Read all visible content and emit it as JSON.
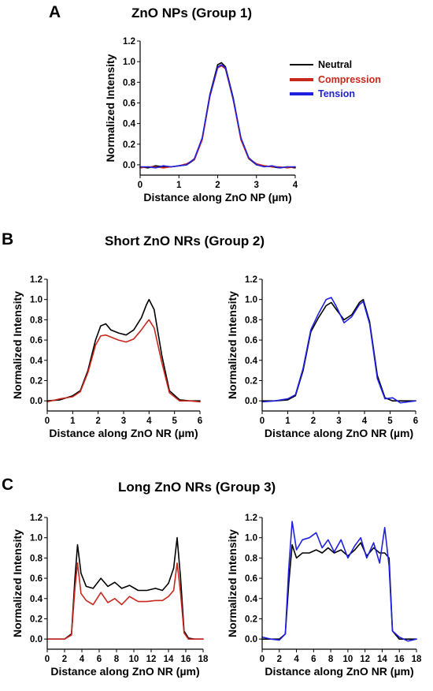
{
  "colors": {
    "neutral": "#000000",
    "compression": "#c8281e",
    "tension": "#2020e0"
  },
  "panels": [
    {
      "letter": "A",
      "title": "ZnO NPs (Group 1)"
    },
    {
      "letter": "B",
      "title": "Short ZnO NRs (Group 2)"
    },
    {
      "letter": "C",
      "title": "Long ZnO NRs (Group 3)"
    }
  ],
  "legend": [
    {
      "label": "Neutral",
      "color_key": "neutral"
    },
    {
      "label": "Compression",
      "color_key": "compression"
    },
    {
      "label": "Tension",
      "color_key": "tension"
    }
  ],
  "chart_data": [
    {
      "id": "A",
      "type": "line",
      "xlabel": "Distance along ZnO NP (µm)",
      "ylabel": "Normalized Intensity",
      "xlim": [
        0,
        4
      ],
      "ylim": [
        -0.1,
        1.2
      ],
      "xticks": [
        0,
        1,
        2,
        3,
        4
      ],
      "yticks": [
        0.0,
        0.2,
        0.4,
        0.6,
        0.8,
        1.0,
        1.2
      ],
      "legend_position": "top-right",
      "series": [
        {
          "name": "Neutral",
          "color_key": "neutral",
          "x": [
            0,
            0.2,
            0.4,
            0.6,
            0.8,
            1.0,
            1.2,
            1.4,
            1.6,
            1.8,
            2.0,
            2.1,
            2.2,
            2.4,
            2.6,
            2.8,
            3.0,
            3.2,
            3.4,
            3.6,
            3.8,
            4.0
          ],
          "y": [
            -0.02,
            -0.03,
            -0.01,
            -0.02,
            -0.02,
            -0.01,
            0.0,
            0.05,
            0.25,
            0.68,
            0.97,
            0.99,
            0.95,
            0.65,
            0.25,
            0.06,
            0.0,
            -0.01,
            -0.02,
            -0.03,
            -0.02,
            -0.03
          ]
        },
        {
          "name": "Compression",
          "color_key": "compression",
          "x": [
            0,
            0.2,
            0.4,
            0.6,
            0.8,
            1.0,
            1.2,
            1.4,
            1.6,
            1.8,
            2.0,
            2.1,
            2.2,
            2.4,
            2.6,
            2.8,
            3.0,
            3.2,
            3.4,
            3.6,
            3.8,
            4.0
          ],
          "y": [
            -0.03,
            -0.02,
            -0.02,
            -0.03,
            -0.02,
            -0.01,
            0.01,
            0.05,
            0.24,
            0.66,
            0.94,
            0.96,
            0.93,
            0.63,
            0.24,
            0.06,
            0.01,
            -0.01,
            -0.02,
            -0.02,
            -0.03,
            -0.02
          ]
        },
        {
          "name": "Tension",
          "color_key": "tension",
          "x": [
            0,
            0.2,
            0.4,
            0.6,
            0.8,
            1.0,
            1.2,
            1.4,
            1.6,
            1.8,
            2.0,
            2.1,
            2.2,
            2.4,
            2.6,
            2.8,
            3.0,
            3.2,
            3.4,
            3.6,
            3.8,
            4.0
          ],
          "y": [
            -0.02,
            -0.02,
            -0.03,
            -0.01,
            -0.02,
            -0.01,
            0.0,
            0.06,
            0.26,
            0.67,
            0.95,
            0.97,
            0.94,
            0.64,
            0.26,
            0.07,
            0.0,
            -0.02,
            -0.01,
            -0.03,
            -0.02,
            -0.02
          ]
        }
      ]
    },
    {
      "id": "B-left",
      "type": "line",
      "xlabel": "Distance along ZnO NR (µm)",
      "ylabel": "Normalized Intensity",
      "xlim": [
        0,
        6
      ],
      "ylim": [
        -0.1,
        1.2
      ],
      "xticks": [
        0,
        1,
        2,
        3,
        4,
        5,
        6
      ],
      "yticks": [
        0.0,
        0.2,
        0.4,
        0.6,
        0.8,
        1.0,
        1.2
      ],
      "series": [
        {
          "name": "Neutral",
          "color_key": "neutral",
          "x": [
            0,
            0.5,
            1.0,
            1.3,
            1.6,
            1.9,
            2.1,
            2.3,
            2.5,
            2.8,
            3.1,
            3.4,
            3.7,
            3.9,
            4.0,
            4.2,
            4.5,
            4.8,
            5.2,
            5.6,
            6.0
          ],
          "y": [
            0.0,
            0.01,
            0.05,
            0.1,
            0.3,
            0.6,
            0.74,
            0.76,
            0.7,
            0.67,
            0.65,
            0.7,
            0.82,
            0.95,
            1.0,
            0.9,
            0.45,
            0.1,
            0.01,
            0.0,
            0.0
          ]
        },
        {
          "name": "Compression",
          "color_key": "compression",
          "x": [
            0,
            0.5,
            1.0,
            1.3,
            1.6,
            1.9,
            2.1,
            2.3,
            2.5,
            2.8,
            3.1,
            3.4,
            3.7,
            3.9,
            4.0,
            4.2,
            4.5,
            4.8,
            5.2,
            5.6,
            6.0
          ],
          "y": [
            -0.01,
            0.02,
            0.04,
            0.09,
            0.28,
            0.55,
            0.64,
            0.65,
            0.63,
            0.6,
            0.58,
            0.61,
            0.7,
            0.77,
            0.8,
            0.72,
            0.38,
            0.08,
            0.0,
            0.0,
            -0.01
          ]
        }
      ]
    },
    {
      "id": "B-right",
      "type": "line",
      "xlabel": "Distance along ZnO NR (µm)",
      "ylabel": "Normalized Intensity",
      "xlim": [
        0,
        6
      ],
      "ylim": [
        -0.1,
        1.2
      ],
      "xticks": [
        0,
        1,
        2,
        3,
        4,
        5,
        6
      ],
      "yticks": [
        0.0,
        0.2,
        0.4,
        0.6,
        0.8,
        1.0,
        1.2
      ],
      "series": [
        {
          "name": "Neutral",
          "color_key": "neutral",
          "x": [
            0,
            0.5,
            1.0,
            1.3,
            1.6,
            1.9,
            2.2,
            2.5,
            2.7,
            2.9,
            3.2,
            3.5,
            3.8,
            3.95,
            4.2,
            4.5,
            4.8,
            5.1,
            5.4,
            6.0
          ],
          "y": [
            0.0,
            0.0,
            0.01,
            0.05,
            0.3,
            0.68,
            0.82,
            0.94,
            0.97,
            0.9,
            0.8,
            0.85,
            0.97,
            1.0,
            0.78,
            0.25,
            0.03,
            0.0,
            0.0,
            0.0
          ]
        },
        {
          "name": "Tension",
          "color_key": "tension",
          "x": [
            0,
            0.5,
            1.0,
            1.3,
            1.6,
            1.9,
            2.2,
            2.5,
            2.7,
            2.9,
            3.2,
            3.5,
            3.8,
            3.95,
            4.2,
            4.5,
            4.8,
            5.1,
            5.4,
            6.0
          ],
          "y": [
            -0.01,
            0.0,
            0.02,
            0.06,
            0.32,
            0.7,
            0.86,
            1.0,
            1.02,
            0.93,
            0.77,
            0.83,
            0.95,
            0.98,
            0.76,
            0.22,
            0.02,
            0.03,
            -0.02,
            0.0
          ]
        }
      ]
    },
    {
      "id": "C-left",
      "type": "line",
      "xlabel": "Distance along ZnO NR (µm)",
      "ylabel": "Normalized Intensity",
      "xlim": [
        0,
        18
      ],
      "ylim": [
        -0.1,
        1.2
      ],
      "xticks": [
        0,
        2,
        4,
        6,
        8,
        10,
        12,
        14,
        16,
        18
      ],
      "yticks": [
        0.0,
        0.2,
        0.4,
        0.6,
        0.8,
        1.0,
        1.2
      ],
      "series": [
        {
          "name": "Neutral",
          "color_key": "neutral",
          "x": [
            0,
            1,
            2,
            2.8,
            3.2,
            3.5,
            3.9,
            4.5,
            5.3,
            6.2,
            7.0,
            7.8,
            8.6,
            9.5,
            10.5,
            11.5,
            12.5,
            13.3,
            14.0,
            14.6,
            15.0,
            15.4,
            15.8,
            16.3,
            17,
            18
          ],
          "y": [
            0.0,
            0.0,
            0.0,
            0.05,
            0.6,
            0.93,
            0.65,
            0.52,
            0.5,
            0.6,
            0.52,
            0.56,
            0.5,
            0.53,
            0.48,
            0.48,
            0.5,
            0.48,
            0.55,
            0.7,
            1.0,
            0.6,
            0.08,
            0.01,
            0.0,
            0.0
          ]
        },
        {
          "name": "Compression",
          "color_key": "compression",
          "x": [
            0,
            1,
            2,
            2.8,
            3.2,
            3.5,
            3.9,
            4.5,
            5.3,
            6.2,
            7.0,
            7.8,
            8.6,
            9.5,
            10.5,
            11.5,
            12.5,
            13.3,
            14.0,
            14.6,
            15.0,
            15.4,
            15.8,
            16.3,
            17,
            18
          ],
          "y": [
            0.0,
            0.0,
            0.0,
            0.04,
            0.5,
            0.75,
            0.45,
            0.38,
            0.34,
            0.46,
            0.36,
            0.4,
            0.34,
            0.42,
            0.37,
            0.37,
            0.38,
            0.38,
            0.42,
            0.48,
            0.75,
            0.45,
            0.06,
            0.0,
            0.0,
            0.0
          ]
        }
      ]
    },
    {
      "id": "C-right",
      "type": "line",
      "xlabel": "Distance along ZnO NR (µm)",
      "ylabel": "Normalized Intensity",
      "xlim": [
        0,
        18
      ],
      "ylim": [
        -0.1,
        1.2
      ],
      "xticks": [
        0,
        2,
        4,
        6,
        8,
        10,
        12,
        14,
        16,
        18
      ],
      "yticks": [
        0.0,
        0.2,
        0.4,
        0.6,
        0.8,
        1.0,
        1.2
      ],
      "series": [
        {
          "name": "Neutral",
          "color_key": "neutral",
          "x": [
            0,
            1,
            2,
            2.7,
            3.1,
            3.5,
            4.0,
            4.7,
            5.5,
            6.3,
            7.0,
            7.7,
            8.4,
            9.2,
            10.0,
            10.8,
            11.5,
            12.2,
            13.0,
            13.7,
            14.3,
            14.8,
            15.2,
            16,
            17,
            18
          ],
          "y": [
            0.0,
            0.0,
            0.0,
            0.05,
            0.55,
            0.93,
            0.8,
            0.85,
            0.85,
            0.88,
            0.85,
            0.9,
            0.85,
            0.88,
            0.82,
            0.88,
            0.95,
            0.82,
            0.9,
            0.85,
            0.85,
            0.8,
            0.08,
            0.0,
            0.0,
            0.0
          ]
        },
        {
          "name": "Tension",
          "color_key": "tension",
          "x": [
            0,
            1,
            2,
            2.7,
            3.1,
            3.5,
            4.0,
            4.7,
            5.5,
            6.3,
            7.0,
            7.7,
            8.4,
            9.2,
            10.0,
            10.8,
            11.5,
            12.2,
            13.0,
            13.7,
            14.3,
            14.8,
            15.2,
            16,
            17,
            18
          ],
          "y": [
            0.02,
            0.0,
            -0.01,
            0.05,
            0.7,
            1.16,
            0.88,
            0.98,
            1.0,
            1.05,
            0.9,
            0.98,
            0.86,
            0.98,
            0.8,
            0.92,
            1.0,
            0.8,
            0.95,
            0.75,
            1.1,
            0.72,
            0.08,
            0.02,
            -0.02,
            0.0
          ]
        }
      ]
    }
  ]
}
